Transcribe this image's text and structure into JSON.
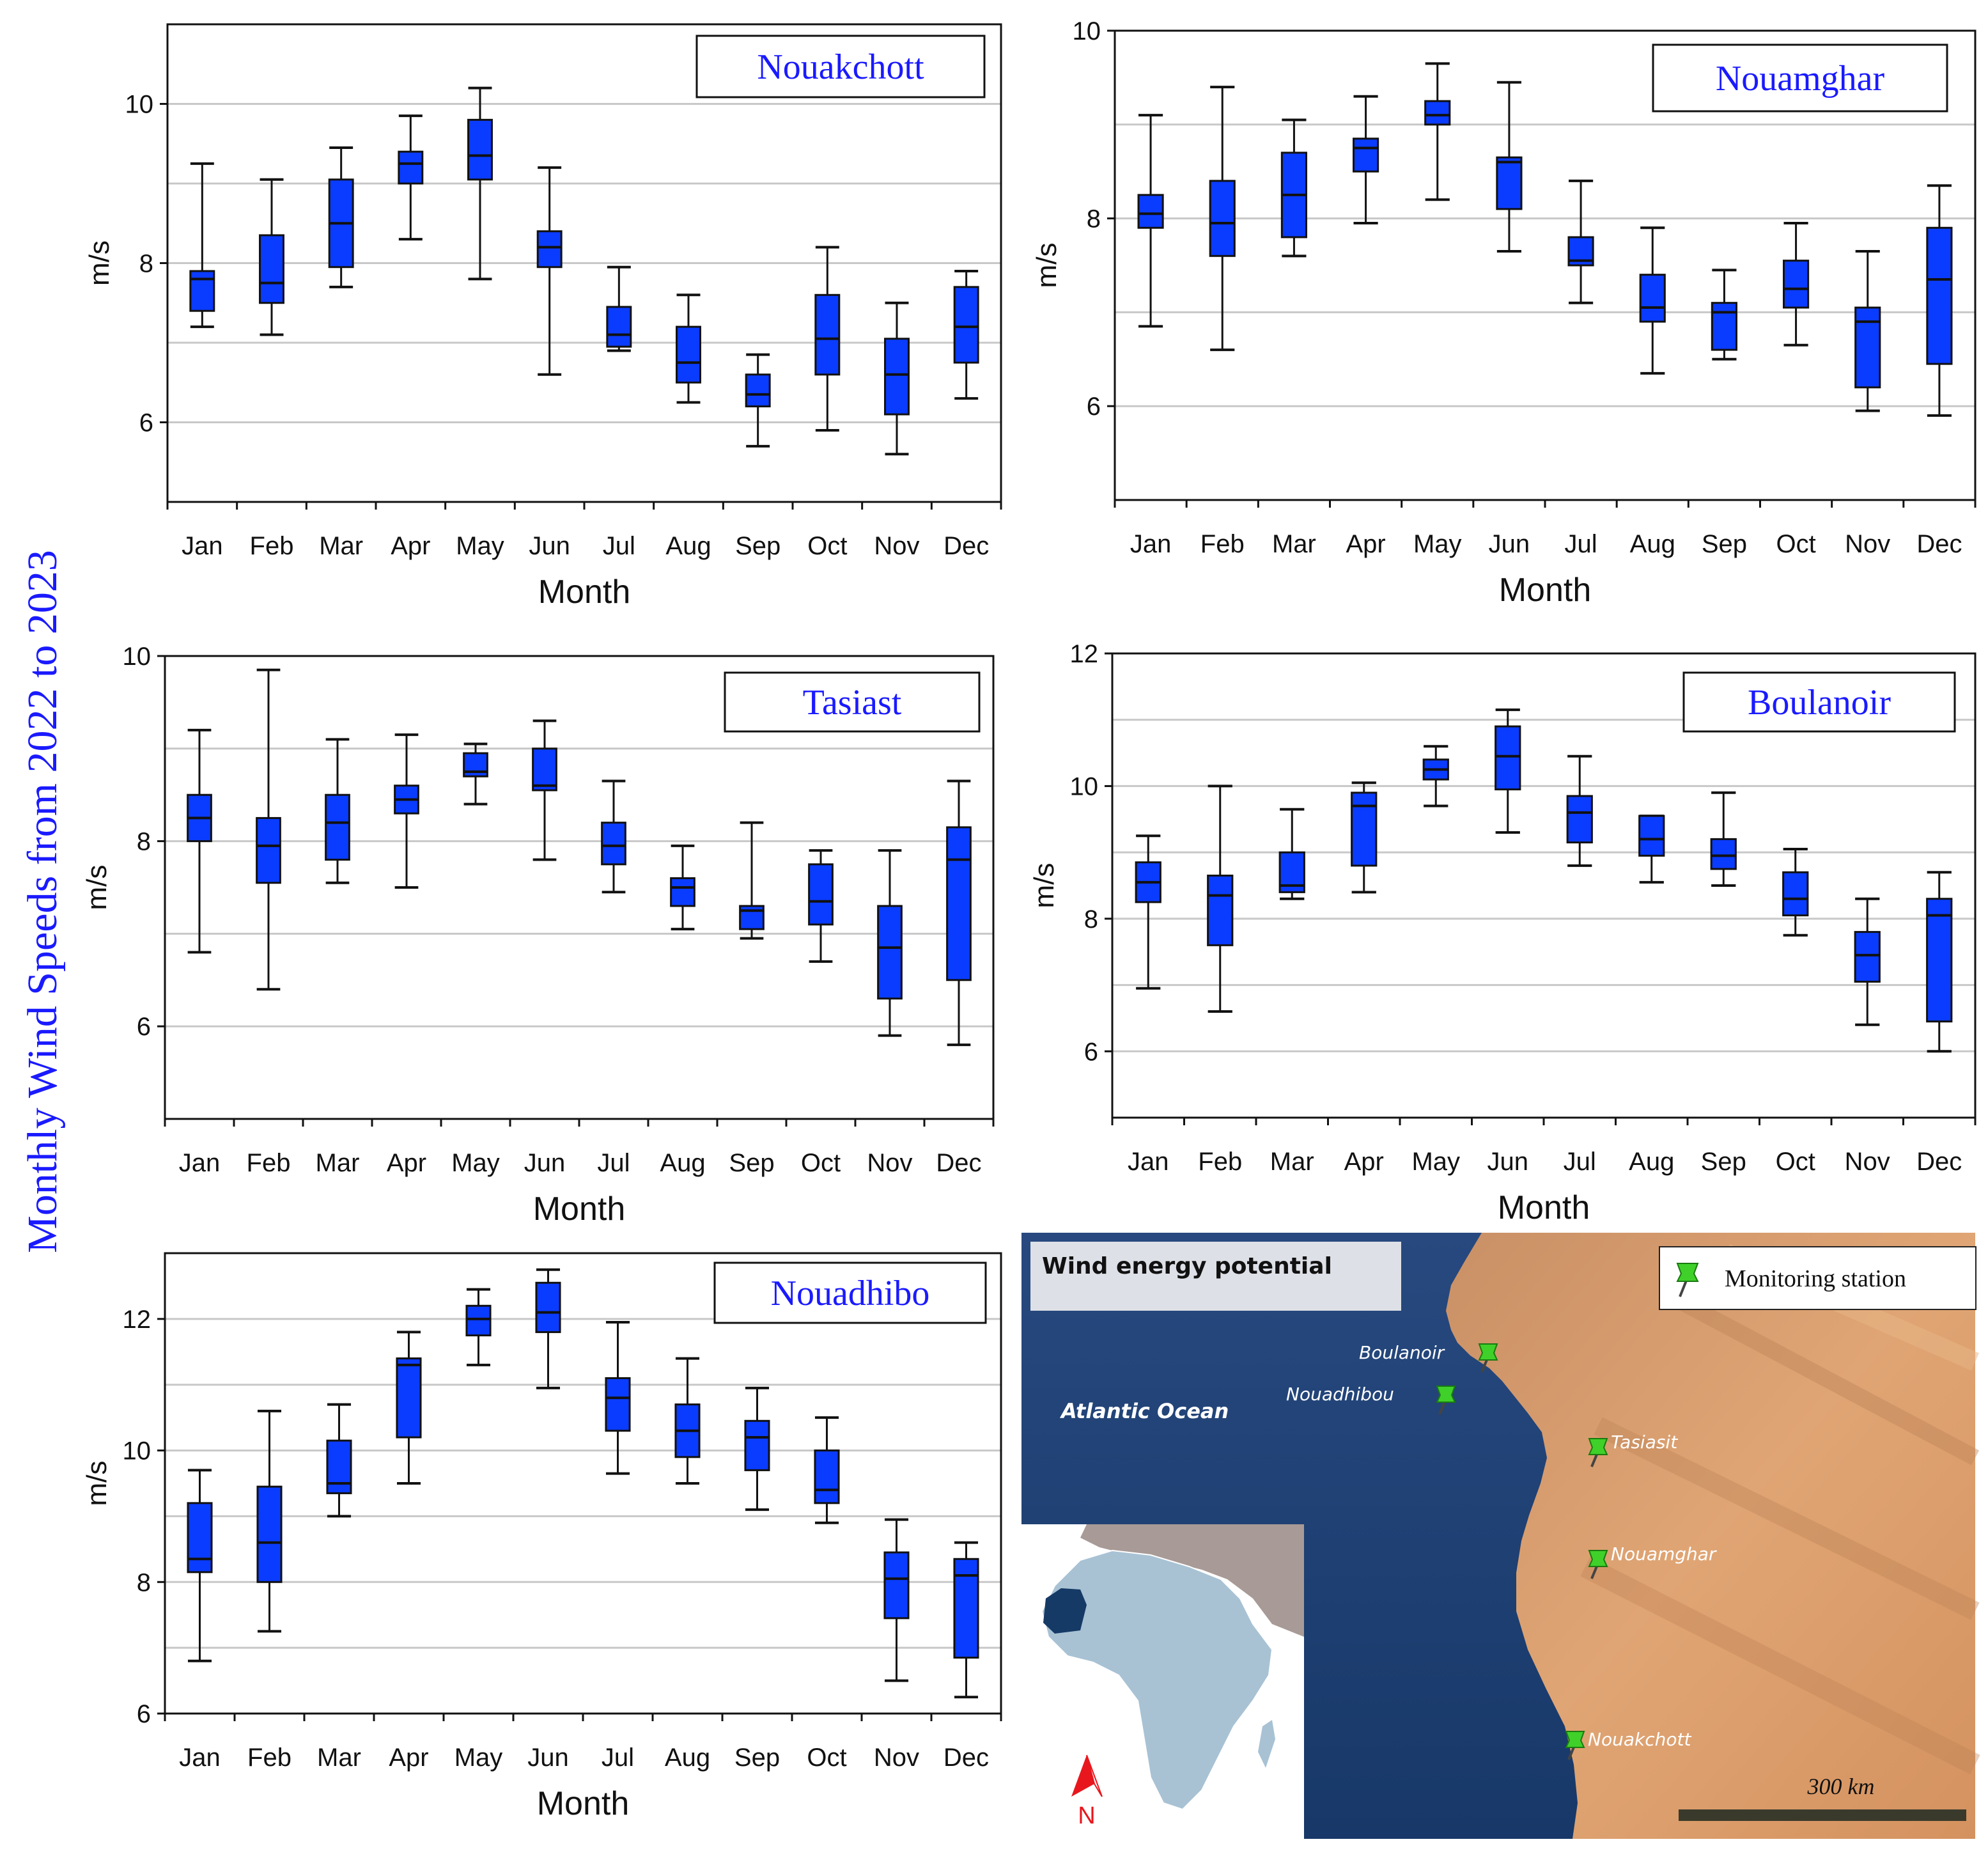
{
  "figure": {
    "super_ylabel": "Monthly  Wind Speeds from 2022 to 2023",
    "colors": {
      "box": "#0a3cff",
      "title": "#1a1aff",
      "grid": "#c8c8c8",
      "ocean": "#1d3f78",
      "land": "#d89a6a"
    }
  },
  "chart_data": [
    {
      "type": "box",
      "title": "Nouakchott",
      "xlabel": "Month",
      "ylabel": "m/s",
      "ylim": [
        5,
        11
      ],
      "yticks": [
        6,
        8,
        10
      ],
      "gridlines": [
        6,
        7,
        8,
        9,
        10
      ],
      "categories": [
        "Jan",
        "Feb",
        "Mar",
        "Apr",
        "May",
        "Jun",
        "Jul",
        "Aug",
        "Sep",
        "Oct",
        "Nov",
        "Dec"
      ],
      "boxes": [
        {
          "min": 7.2,
          "q1": 7.4,
          "median": 7.8,
          "q3": 7.9,
          "max": 9.25
        },
        {
          "min": 7.1,
          "q1": 7.5,
          "median": 7.75,
          "q3": 8.35,
          "max": 9.05
        },
        {
          "min": 7.7,
          "q1": 7.95,
          "median": 8.5,
          "q3": 9.05,
          "max": 9.45
        },
        {
          "min": 8.3,
          "q1": 9.0,
          "median": 9.25,
          "q3": 9.4,
          "max": 9.85
        },
        {
          "min": 7.8,
          "q1": 9.05,
          "median": 9.35,
          "q3": 9.8,
          "max": 10.2
        },
        {
          "min": 6.6,
          "q1": 7.95,
          "median": 8.2,
          "q3": 8.4,
          "max": 9.2
        },
        {
          "min": 6.9,
          "q1": 6.95,
          "median": 7.1,
          "q3": 7.45,
          "max": 7.95
        },
        {
          "min": 6.25,
          "q1": 6.5,
          "median": 6.75,
          "q3": 7.2,
          "max": 7.6
        },
        {
          "min": 5.7,
          "q1": 6.2,
          "median": 6.35,
          "q3": 6.6,
          "max": 6.85
        },
        {
          "min": 5.9,
          "q1": 6.6,
          "median": 7.05,
          "q3": 7.6,
          "max": 8.2
        },
        {
          "min": 5.6,
          "q1": 6.1,
          "median": 6.6,
          "q3": 7.05,
          "max": 7.5
        },
        {
          "min": 6.3,
          "q1": 6.75,
          "median": 7.2,
          "q3": 7.7,
          "max": 7.9
        }
      ]
    },
    {
      "type": "box",
      "title": "Nouamghar",
      "xlabel": "Month",
      "ylabel": "m/s",
      "ylim": [
        5,
        10
      ],
      "yticks": [
        6,
        8,
        10
      ],
      "gridlines": [
        6,
        7,
        8,
        9
      ],
      "categories": [
        "Jan",
        "Feb",
        "Mar",
        "Apr",
        "May",
        "Jun",
        "Jul",
        "Aug",
        "Sep",
        "Oct",
        "Nov",
        "Dec"
      ],
      "boxes": [
        {
          "min": 6.85,
          "q1": 7.9,
          "median": 8.05,
          "q3": 8.25,
          "max": 9.1
        },
        {
          "min": 6.6,
          "q1": 7.6,
          "median": 7.95,
          "q3": 8.4,
          "max": 9.4
        },
        {
          "min": 7.6,
          "q1": 7.8,
          "median": 8.25,
          "q3": 8.7,
          "max": 9.05
        },
        {
          "min": 7.95,
          "q1": 8.5,
          "median": 8.75,
          "q3": 8.85,
          "max": 9.3
        },
        {
          "min": 8.2,
          "q1": 9.0,
          "median": 9.1,
          "q3": 9.25,
          "max": 9.65
        },
        {
          "min": 7.65,
          "q1": 8.1,
          "median": 8.6,
          "q3": 8.65,
          "max": 9.45
        },
        {
          "min": 7.1,
          "q1": 7.5,
          "median": 7.55,
          "q3": 7.8,
          "max": 8.4
        },
        {
          "min": 6.35,
          "q1": 6.9,
          "median": 7.05,
          "q3": 7.4,
          "max": 7.9
        },
        {
          "min": 6.5,
          "q1": 6.6,
          "median": 7.0,
          "q3": 7.1,
          "max": 7.45
        },
        {
          "min": 6.65,
          "q1": 7.05,
          "median": 7.25,
          "q3": 7.55,
          "max": 7.95
        },
        {
          "min": 5.95,
          "q1": 6.2,
          "median": 6.9,
          "q3": 7.05,
          "max": 7.65
        },
        {
          "min": 5.9,
          "q1": 6.45,
          "median": 7.35,
          "q3": 7.9,
          "max": 8.35
        }
      ]
    },
    {
      "type": "box",
      "title": "Tasiast",
      "xlabel": "Month",
      "ylabel": "m/s",
      "ylim": [
        5,
        10
      ],
      "yticks": [
        6,
        8,
        10
      ],
      "gridlines": [
        6,
        7,
        8,
        9
      ],
      "categories": [
        "Jan",
        "Feb",
        "Mar",
        "Apr",
        "May",
        "Jun",
        "Jul",
        "Aug",
        "Sep",
        "Oct",
        "Nov",
        "Dec"
      ],
      "boxes": [
        {
          "min": 6.8,
          "q1": 8.0,
          "median": 8.25,
          "q3": 8.5,
          "max": 9.2
        },
        {
          "min": 6.4,
          "q1": 7.55,
          "median": 7.95,
          "q3": 8.25,
          "max": 9.85
        },
        {
          "min": 7.55,
          "q1": 7.8,
          "median": 8.2,
          "q3": 8.5,
          "max": 9.1
        },
        {
          "min": 7.5,
          "q1": 8.3,
          "median": 8.45,
          "q3": 8.6,
          "max": 9.15
        },
        {
          "min": 8.4,
          "q1": 8.7,
          "median": 8.75,
          "q3": 8.95,
          "max": 9.05
        },
        {
          "min": 7.8,
          "q1": 8.55,
          "median": 8.6,
          "q3": 9.0,
          "max": 9.3
        },
        {
          "min": 7.45,
          "q1": 7.75,
          "median": 7.95,
          "q3": 8.2,
          "max": 8.65
        },
        {
          "min": 7.05,
          "q1": 7.3,
          "median": 7.5,
          "q3": 7.6,
          "max": 7.95
        },
        {
          "min": 6.95,
          "q1": 7.05,
          "median": 7.25,
          "q3": 7.3,
          "max": 8.2
        },
        {
          "min": 6.7,
          "q1": 7.1,
          "median": 7.35,
          "q3": 7.75,
          "max": 7.9
        },
        {
          "min": 5.9,
          "q1": 6.3,
          "median": 6.85,
          "q3": 7.3,
          "max": 7.9
        },
        {
          "min": 5.8,
          "q1": 6.5,
          "median": 7.8,
          "q3": 8.15,
          "max": 8.65
        }
      ]
    },
    {
      "type": "box",
      "title": "Boulanoir",
      "xlabel": "Month",
      "ylabel": "m/s",
      "ylim": [
        5,
        12
      ],
      "yticks": [
        6,
        8,
        10,
        12
      ],
      "gridlines": [
        6,
        7,
        8,
        9,
        10,
        11
      ],
      "categories": [
        "Jan",
        "Feb",
        "Mar",
        "Apr",
        "May",
        "Jun",
        "Jul",
        "Aug",
        "Sep",
        "Oct",
        "Nov",
        "Dec"
      ],
      "boxes": [
        {
          "min": 6.95,
          "q1": 8.25,
          "median": 8.55,
          "q3": 8.85,
          "max": 9.25
        },
        {
          "min": 6.6,
          "q1": 7.6,
          "median": 8.35,
          "q3": 8.65,
          "max": 10.0
        },
        {
          "min": 8.3,
          "q1": 8.4,
          "median": 8.5,
          "q3": 9.0,
          "max": 9.65
        },
        {
          "min": 8.4,
          "q1": 8.8,
          "median": 9.7,
          "q3": 9.9,
          "max": 10.05
        },
        {
          "min": 9.7,
          "q1": 10.1,
          "median": 10.25,
          "q3": 10.4,
          "max": 10.6
        },
        {
          "min": 9.3,
          "q1": 9.95,
          "median": 10.45,
          "q3": 10.9,
          "max": 11.15
        },
        {
          "min": 8.8,
          "q1": 9.15,
          "median": 9.6,
          "q3": 9.85,
          "max": 10.45
        },
        {
          "min": 8.55,
          "q1": 8.95,
          "median": 9.2,
          "q3": 9.55,
          "max": 9.55
        },
        {
          "min": 8.5,
          "q1": 8.75,
          "median": 8.95,
          "q3": 9.2,
          "max": 9.9
        },
        {
          "min": 7.75,
          "q1": 8.05,
          "median": 8.3,
          "q3": 8.7,
          "max": 9.05
        },
        {
          "min": 6.4,
          "q1": 7.05,
          "median": 7.45,
          "q3": 7.8,
          "max": 8.3
        },
        {
          "min": 6.0,
          "q1": 6.45,
          "median": 8.05,
          "q3": 8.3,
          "max": 8.7
        }
      ]
    },
    {
      "type": "box",
      "title": "Nouadhibo",
      "xlabel": "Month",
      "ylabel": "m/s",
      "ylim": [
        6,
        13
      ],
      "yticks": [
        6,
        8,
        10,
        12
      ],
      "gridlines": [
        7,
        8,
        9,
        10,
        11,
        12
      ],
      "categories": [
        "Jan",
        "Feb",
        "Mar",
        "Apr",
        "May",
        "Jun",
        "Jul",
        "Aug",
        "Sep",
        "Oct",
        "Nov",
        "Dec"
      ],
      "boxes": [
        {
          "min": 6.8,
          "q1": 8.15,
          "median": 8.35,
          "q3": 9.2,
          "max": 9.7
        },
        {
          "min": 7.25,
          "q1": 8.0,
          "median": 8.6,
          "q3": 9.45,
          "max": 10.6
        },
        {
          "min": 9.0,
          "q1": 9.35,
          "median": 9.5,
          "q3": 10.15,
          "max": 10.7
        },
        {
          "min": 9.5,
          "q1": 10.2,
          "median": 11.3,
          "q3": 11.4,
          "max": 11.8
        },
        {
          "min": 11.3,
          "q1": 11.75,
          "median": 12.0,
          "q3": 12.2,
          "max": 12.45
        },
        {
          "min": 10.95,
          "q1": 11.8,
          "median": 12.1,
          "q3": 12.55,
          "max": 12.75
        },
        {
          "min": 9.65,
          "q1": 10.3,
          "median": 10.8,
          "q3": 11.1,
          "max": 11.95
        },
        {
          "min": 9.5,
          "q1": 9.9,
          "median": 10.3,
          "q3": 10.7,
          "max": 11.4
        },
        {
          "min": 9.1,
          "q1": 9.7,
          "median": 10.2,
          "q3": 10.45,
          "max": 10.95
        },
        {
          "min": 8.9,
          "q1": 9.2,
          "median": 9.4,
          "q3": 10.0,
          "max": 10.5
        },
        {
          "min": 6.5,
          "q1": 7.45,
          "median": 8.05,
          "q3": 8.45,
          "max": 8.95
        },
        {
          "min": 6.25,
          "q1": 6.85,
          "median": 8.1,
          "q3": 8.35,
          "max": 8.6
        }
      ]
    }
  ],
  "map": {
    "title": "Wind energy potential",
    "legend_label": "Monitoring station",
    "ocean_label": "Atlantic  Ocean",
    "scale_label": "300 km",
    "north_label": "N",
    "stations": [
      {
        "name": "Boulanoir"
      },
      {
        "name": "Nouadhibou"
      },
      {
        "name": "Tasiasit"
      },
      {
        "name": "Nouamghar"
      },
      {
        "name": "Nouakchott"
      }
    ]
  }
}
